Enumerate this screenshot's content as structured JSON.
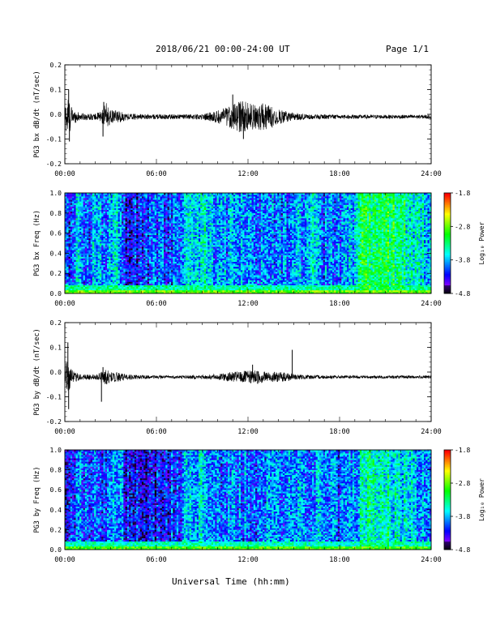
{
  "header": {
    "title": "2018/06/21  00:00-24:00 UT",
    "page": "Page 1/1"
  },
  "xaxis_title": "Universal Time (hh:mm)",
  "chart_data": [
    {
      "type": "line",
      "ylabel": "PG3 bx dB/dt (nT/sec)",
      "xlim": [
        0,
        24
      ],
      "ylim": [
        -0.2,
        0.2
      ],
      "x_tick_labels": [
        "00:00",
        "06:00",
        "12:00",
        "18:00",
        "24:00"
      ],
      "y_tick_labels": [
        "-0.2",
        "-0.1",
        "0.0",
        "0.1",
        "0.2"
      ],
      "y_ticks": [
        -0.2,
        -0.1,
        0.0,
        0.1,
        0.2
      ],
      "baseline": -0.01,
      "envelope_hours": [
        0,
        0.2,
        0.5,
        1.0,
        2.0,
        2.5,
        2.7,
        3.0,
        3.5,
        4.0,
        5.0,
        6.0,
        7.0,
        8.0,
        9.0,
        10.0,
        11.0,
        11.5,
        12.0,
        12.5,
        13.0,
        13.5,
        14.0,
        14.5,
        15.0,
        16.0,
        17.0,
        18.0,
        19.0,
        20.0,
        21.0,
        22.0,
        23.0,
        24.0
      ],
      "envelope_amplitude": [
        0.05,
        0.09,
        0.03,
        0.015,
        0.012,
        0.03,
        0.06,
        0.025,
        0.025,
        0.015,
        0.01,
        0.01,
        0.01,
        0.01,
        0.012,
        0.025,
        0.05,
        0.065,
        0.06,
        0.05,
        0.055,
        0.045,
        0.03,
        0.025,
        0.015,
        0.01,
        0.01,
        0.008,
        0.008,
        0.008,
        0.008,
        0.008,
        0.008,
        0.008
      ],
      "spikes": [
        {
          "x": 0.25,
          "y": 0.1
        },
        {
          "x": 0.3,
          "y": -0.11
        },
        {
          "x": 2.5,
          "y": -0.09
        },
        {
          "x": 2.55,
          "y": 0.05
        },
        {
          "x": 11.7,
          "y": -0.1
        },
        {
          "x": 11.0,
          "y": 0.08
        }
      ]
    },
    {
      "type": "heatmap",
      "ylabel": "PG3 bx Freq (Hz)",
      "xlim": [
        0,
        24
      ],
      "ylim": [
        0,
        1.0
      ],
      "x_tick_labels": [
        "00:00",
        "06:00",
        "12:00",
        "18:00",
        "24:00"
      ],
      "y_tick_labels": [
        "0.0",
        "0.2",
        "0.4",
        "0.6",
        "0.8",
        "1.0"
      ],
      "y_ticks": [
        0.0,
        0.2,
        0.4,
        0.6,
        0.8,
        1.0
      ],
      "colorbar_label": "Log₁₀ Power",
      "colorbar_ticks": [
        "-1.8",
        "-2.8",
        "-3.8",
        "-4.8"
      ],
      "colorbar_values": [
        -1.8,
        -2.8,
        -3.8,
        -4.8
      ],
      "colorbar_range": [
        -4.8,
        -1.8
      ],
      "column_hours": [
        0,
        0.5,
        1.0,
        1.5,
        2.0,
        2.5,
        3.0,
        3.5,
        4.0,
        4.5,
        5.0,
        5.5,
        6.0,
        7.0,
        8.0,
        8.5,
        9.0,
        9.5,
        10.0,
        11.0,
        12.0,
        13.0,
        14.0,
        15.0,
        16.0,
        16.5,
        17.0,
        17.5,
        18.0,
        19.0,
        19.5,
        20.0,
        21.0,
        22.0,
        22.5,
        23.0,
        24.0
      ],
      "column_power": [
        -4.2,
        -4.0,
        -3.7,
        -4.1,
        -3.8,
        -4.0,
        -3.9,
        -3.7,
        -4.2,
        -4.3,
        -4.2,
        -4.1,
        -4.0,
        -4.1,
        -3.8,
        -3.7,
        -3.6,
        -3.7,
        -3.9,
        -3.9,
        -4.0,
        -4.0,
        -4.0,
        -3.9,
        -3.9,
        -3.7,
        -4.0,
        -3.9,
        -4.0,
        -3.8,
        -3.3,
        -3.2,
        -3.2,
        -3.3,
        -3.5,
        -3.6,
        -3.7
      ],
      "low_freq_power": -2.8
    },
    {
      "type": "line",
      "ylabel": "PG3 by dB/dt (nT/sec)",
      "xlim": [
        0,
        24
      ],
      "ylim": [
        -0.2,
        0.2
      ],
      "x_tick_labels": [
        "00:00",
        "06:00",
        "12:00",
        "18:00",
        "24:00"
      ],
      "y_tick_labels": [
        "-0.2",
        "-0.1",
        "0.0",
        "0.1",
        "0.2"
      ],
      "y_ticks": [
        -0.2,
        -0.1,
        0.0,
        0.1,
        0.2
      ],
      "baseline": -0.02,
      "envelope_hours": [
        0,
        0.2,
        0.5,
        1.0,
        2.0,
        2.5,
        2.7,
        3.0,
        3.5,
        4.0,
        5.0,
        6.0,
        7.0,
        8.0,
        9.0,
        10.0,
        11.0,
        11.5,
        12.0,
        12.5,
        13.0,
        13.5,
        14.0,
        14.5,
        15.0,
        16.0,
        17.0,
        18.0,
        19.0,
        20.0,
        21.0,
        22.0,
        23.0,
        24.0
      ],
      "envelope_amplitude": [
        0.04,
        0.08,
        0.025,
        0.012,
        0.01,
        0.025,
        0.035,
        0.02,
        0.02,
        0.012,
        0.008,
        0.007,
        0.006,
        0.007,
        0.008,
        0.012,
        0.02,
        0.025,
        0.025,
        0.03,
        0.025,
        0.02,
        0.02,
        0.02,
        0.012,
        0.008,
        0.007,
        0.006,
        0.006,
        0.006,
        0.006,
        0.006,
        0.006,
        0.006
      ],
      "spikes": [
        {
          "x": 0.2,
          "y": 0.12
        },
        {
          "x": 0.25,
          "y": -0.15
        },
        {
          "x": 2.4,
          "y": -0.12
        },
        {
          "x": 2.5,
          "y": 0.02
        },
        {
          "x": 14.9,
          "y": 0.09
        },
        {
          "x": 12.3,
          "y": 0.03
        }
      ]
    },
    {
      "type": "heatmap",
      "ylabel": "PG3 by Freq (Hz)",
      "xlim": [
        0,
        24
      ],
      "ylim": [
        0,
        1.0
      ],
      "x_tick_labels": [
        "00:00",
        "06:00",
        "12:00",
        "18:00",
        "24:00"
      ],
      "y_tick_labels": [
        "0.0",
        "0.2",
        "0.4",
        "0.6",
        "0.8",
        "1.0"
      ],
      "y_ticks": [
        0.0,
        0.2,
        0.4,
        0.6,
        0.8,
        1.0
      ],
      "colorbar_label": "Log₁₀ Power",
      "colorbar_ticks": [
        "-1.8",
        "-2.8",
        "-3.8",
        "-4.8"
      ],
      "colorbar_values": [
        -1.8,
        -2.8,
        -3.8,
        -4.8
      ],
      "colorbar_range": [
        -4.8,
        -1.8
      ],
      "column_hours": [
        0,
        0.5,
        1.0,
        1.5,
        2.0,
        2.5,
        3.0,
        3.5,
        4.0,
        4.5,
        5.0,
        5.5,
        6.0,
        7.0,
        8.0,
        8.5,
        9.0,
        9.5,
        10.0,
        11.0,
        12.0,
        13.0,
        14.0,
        15.0,
        16.0,
        16.5,
        17.0,
        17.5,
        18.0,
        19.0,
        19.5,
        20.0,
        21.0,
        22.0,
        22.5,
        23.0,
        24.0
      ],
      "column_power": [
        -4.3,
        -4.1,
        -3.8,
        -4.2,
        -3.9,
        -4.1,
        -4.0,
        -3.8,
        -4.3,
        -4.4,
        -4.3,
        -4.3,
        -4.3,
        -4.2,
        -3.9,
        -3.8,
        -3.7,
        -3.8,
        -4.0,
        -3.9,
        -4.0,
        -4.0,
        -4.0,
        -3.8,
        -3.9,
        -3.8,
        -4.0,
        -3.9,
        -4.1,
        -3.9,
        -3.5,
        -3.4,
        -3.5,
        -3.6,
        -3.7,
        -3.8,
        -3.9
      ],
      "low_freq_power": -2.9
    }
  ]
}
